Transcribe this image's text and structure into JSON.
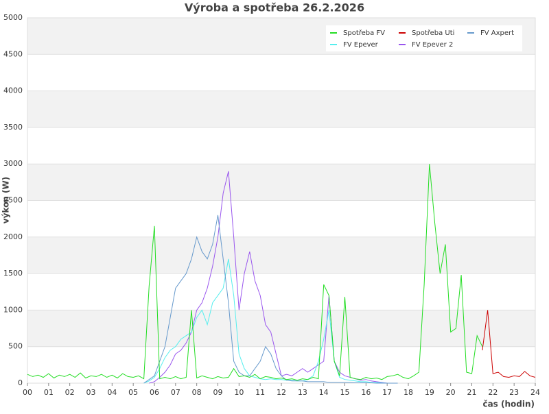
{
  "chart_data": {
    "type": "line",
    "title": "Výroba a spotřeba 26.2.2026",
    "xlabel": "čas (hodin)",
    "ylabel": "výkon (W)",
    "x": [
      0,
      0.25,
      0.5,
      0.75,
      1,
      1.25,
      1.5,
      1.75,
      2,
      2.25,
      2.5,
      2.75,
      3,
      3.25,
      3.5,
      3.75,
      4,
      4.25,
      4.5,
      4.75,
      5,
      5.25,
      5.5,
      5.75,
      6,
      6.25,
      6.5,
      6.75,
      7,
      7.25,
      7.5,
      7.75,
      8,
      8.25,
      8.5,
      8.75,
      9,
      9.25,
      9.5,
      9.75,
      10,
      10.25,
      10.5,
      10.75,
      11,
      11.25,
      11.5,
      11.75,
      12,
      12.25,
      12.5,
      12.75,
      13,
      13.25,
      13.5,
      13.75,
      14,
      14.25,
      14.5,
      14.75,
      15,
      15.25,
      15.5,
      15.75,
      16,
      16.25,
      16.5,
      16.75,
      17,
      17.25,
      17.5,
      17.75,
      18,
      18.25,
      18.5,
      18.75,
      19,
      19.25,
      19.5,
      19.75,
      20,
      20.25,
      20.5,
      20.75,
      21,
      21.25,
      21.5,
      21.75,
      22,
      22.25,
      22.5,
      22.75,
      23,
      23.25,
      23.5,
      23.75,
      24
    ],
    "series": [
      {
        "name": "Spotřeba FV",
        "color": "#22dd22",
        "values": [
          120,
          90,
          110,
          80,
          130,
          70,
          110,
          90,
          120,
          80,
          140,
          70,
          100,
          90,
          120,
          80,
          110,
          70,
          130,
          90,
          80,
          100,
          60,
          1330,
          2150,
          60,
          80,
          60,
          90,
          60,
          80,
          1000,
          70,
          100,
          80,
          60,
          90,
          70,
          80,
          200,
          90,
          100,
          80,
          120,
          60,
          90,
          80,
          60,
          70,
          50,
          60,
          40,
          60,
          50,
          80,
          60,
          1350,
          1200,
          300,
          100,
          1180,
          80,
          60,
          50,
          80,
          60,
          70,
          50,
          90,
          100,
          120,
          80,
          60,
          100,
          150,
          1350,
          3000,
          2200,
          1500,
          1900,
          700,
          750,
          1480,
          150,
          130,
          650,
          500,
          null,
          null,
          null,
          null,
          null,
          null,
          null,
          null,
          null,
          null
        ]
      },
      {
        "name": "Spotřeba Uti",
        "color": "#cc0000",
        "values": [
          null,
          null,
          null,
          null,
          null,
          null,
          null,
          null,
          null,
          null,
          null,
          null,
          null,
          null,
          null,
          null,
          null,
          null,
          null,
          null,
          null,
          null,
          null,
          null,
          null,
          null,
          null,
          null,
          null,
          null,
          null,
          null,
          null,
          null,
          null,
          null,
          null,
          null,
          null,
          null,
          null,
          null,
          null,
          null,
          null,
          null,
          null,
          null,
          null,
          null,
          null,
          null,
          null,
          null,
          null,
          null,
          null,
          null,
          null,
          null,
          null,
          null,
          null,
          null,
          null,
          null,
          null,
          null,
          null,
          null,
          null,
          null,
          null,
          null,
          null,
          null,
          null,
          null,
          null,
          null,
          null,
          null,
          null,
          null,
          null,
          null,
          450,
          1000,
          130,
          150,
          90,
          80,
          100,
          90,
          160,
          100,
          80
        ]
      },
      {
        "name": "FV Axpert",
        "color": "#6699cc",
        "values": [
          null,
          null,
          null,
          null,
          null,
          null,
          null,
          null,
          null,
          null,
          null,
          null,
          null,
          null,
          null,
          null,
          null,
          null,
          null,
          null,
          null,
          null,
          0,
          50,
          100,
          300,
          500,
          900,
          1300,
          1400,
          1500,
          1700,
          2000,
          1800,
          1700,
          1900,
          2300,
          1700,
          1100,
          300,
          150,
          100,
          100,
          200,
          300,
          500,
          400,
          200,
          100,
          40,
          30,
          30,
          30,
          20,
          20,
          20,
          20,
          10,
          10,
          10,
          10,
          10,
          5,
          5,
          5,
          5,
          0,
          0,
          0,
          0,
          0,
          null,
          null,
          null,
          null,
          null,
          null,
          null,
          null,
          null,
          null,
          null,
          null,
          null,
          null,
          null,
          null,
          null,
          null,
          null,
          null,
          null,
          null,
          null,
          null,
          null,
          null
        ]
      },
      {
        "name": "FV Epever",
        "color": "#55eeee",
        "values": [
          null,
          null,
          null,
          null,
          null,
          null,
          null,
          null,
          null,
          null,
          null,
          null,
          null,
          null,
          null,
          null,
          null,
          null,
          null,
          null,
          null,
          null,
          0,
          30,
          80,
          200,
          350,
          450,
          500,
          600,
          650,
          700,
          900,
          1000,
          800,
          1100,
          1200,
          1300,
          1700,
          1200,
          400,
          200,
          100,
          80,
          60,
          50,
          60,
          50,
          50,
          40,
          40,
          30,
          30,
          50,
          100,
          300,
          600,
          1000,
          300,
          80,
          50,
          40,
          30,
          20,
          20,
          10,
          10,
          5,
          0,
          null,
          null,
          null,
          null,
          null,
          null,
          null,
          null,
          null,
          null,
          null,
          null,
          null,
          null,
          null,
          null,
          null,
          null,
          null,
          null,
          null,
          null,
          null,
          null,
          null,
          null,
          null,
          null
        ]
      },
      {
        "name": "FV Epever 2",
        "color": "#9955ee",
        "values": [
          null,
          null,
          null,
          null,
          null,
          null,
          null,
          null,
          null,
          null,
          null,
          null,
          null,
          null,
          null,
          null,
          null,
          null,
          null,
          null,
          null,
          null,
          null,
          0,
          20,
          80,
          150,
          250,
          400,
          450,
          550,
          700,
          1000,
          1100,
          1300,
          1600,
          2000,
          2600,
          2900,
          2000,
          1000,
          1500,
          1800,
          1400,
          1200,
          800,
          700,
          400,
          100,
          120,
          100,
          150,
          200,
          150,
          200,
          250,
          300,
          1200,
          300,
          150,
          100,
          80,
          60,
          40,
          50,
          30,
          20,
          10,
          0,
          null,
          null,
          null,
          null,
          null,
          null,
          null,
          null,
          null,
          null,
          null,
          null,
          null,
          null,
          null,
          null,
          null,
          null,
          null,
          null,
          null,
          null,
          null,
          null,
          null,
          null,
          null,
          null
        ]
      }
    ],
    "xlim": [
      0,
      24
    ],
    "xticks": [
      {
        "value": 0,
        "label": "00"
      },
      {
        "value": 1,
        "label": "01"
      },
      {
        "value": 2,
        "label": "02"
      },
      {
        "value": 3,
        "label": "03"
      },
      {
        "value": 4,
        "label": "04"
      },
      {
        "value": 5,
        "label": "05"
      },
      {
        "value": 6,
        "label": "06"
      },
      {
        "value": 7,
        "label": "07"
      },
      {
        "value": 8,
        "label": "08"
      },
      {
        "value": 9,
        "label": "09"
      },
      10,
      11,
      12,
      13,
      14,
      15,
      16,
      17,
      18,
      19,
      20,
      21,
      22,
      23,
      24
    ],
    "ylim": [
      0,
      5000
    ],
    "yticks": [
      0,
      500,
      1000,
      1500,
      2000,
      2500,
      3000,
      3500,
      4000,
      4500,
      5000
    ],
    "grid": true,
    "legend": "upper right"
  }
}
